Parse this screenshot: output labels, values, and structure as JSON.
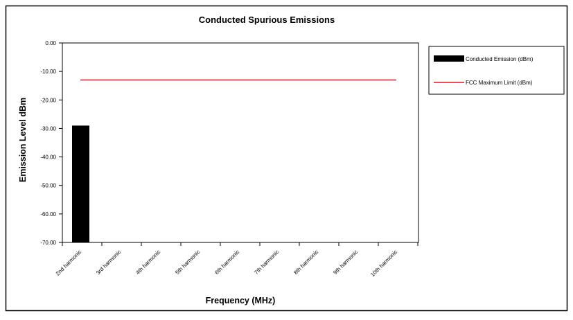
{
  "colors": {
    "bar": "#000000",
    "limit_line": "#e8141c",
    "frame": "#000000",
    "background": "#ffffff"
  },
  "chart_data": {
    "type": "bar",
    "title": "Conducted Spurious Emissions",
    "xlabel": "Frequency (MHz)",
    "ylabel": "Emission Level dBm",
    "ylim": [
      -70,
      0
    ],
    "yticks": [
      "0.00",
      "-10.00",
      "-20.00",
      "-30.00",
      "-40.00",
      "-50.00",
      "-60.00",
      "-70.00"
    ],
    "categories": [
      "2nd harmonic",
      "3rd harmonic",
      "4th harmonic",
      "5th harmonic",
      "6th harmonic",
      "7th harmonic",
      "8th harmonic",
      "9th harmonic",
      "10th harmonic"
    ],
    "series": [
      {
        "name": "Conducted Emission (dBm)",
        "type": "bar",
        "values": [
          -29,
          null,
          null,
          null,
          null,
          null,
          null,
          null,
          null
        ]
      },
      {
        "name": "FCC Maximum Limit (dBm)",
        "type": "line",
        "values": [
          -13,
          -13,
          -13,
          -13,
          -13,
          -13,
          -13,
          -13,
          -13
        ]
      }
    ],
    "grid": false,
    "legend_position": "right"
  }
}
